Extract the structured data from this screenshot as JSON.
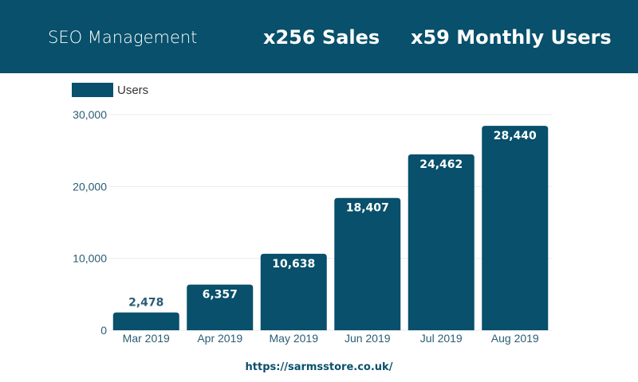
{
  "header": {
    "title": "SEO Management",
    "stat_sales": "x256 Sales",
    "stat_users": "x59 Monthly Users"
  },
  "colors": {
    "bar": "#08506b",
    "header": "#08506b",
    "axis_text": "#2a5d75"
  },
  "footer": {
    "url": "https://sarmsstore.co.uk/"
  },
  "chart_data": {
    "type": "bar",
    "categories": [
      "Mar 2019",
      "Apr 2019",
      "May 2019",
      "Jun 2019",
      "Jul 2019",
      "Aug 2019"
    ],
    "series": [
      {
        "name": "Users",
        "values": [
          2478,
          6357,
          10638,
          18407,
          24462,
          28440
        ]
      }
    ],
    "data_labels": [
      "2,478",
      "6,357",
      "10,638",
      "18,407",
      "24,462",
      "28,440"
    ],
    "yticks": [
      0,
      10000,
      20000,
      30000
    ],
    "ytick_labels": [
      "0",
      "10,000",
      "20,000",
      "30,000"
    ],
    "ylim": [
      0,
      30000
    ],
    "grid": true,
    "legend": "top-left"
  }
}
